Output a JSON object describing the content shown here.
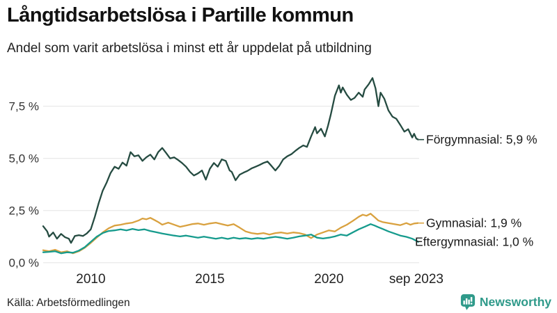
{
  "header": {
    "title": "Långtidsarbetslösa i Partille kommun",
    "subtitle": "Andel som varit arbetslösa i minst ett år uppdelat på utbildning"
  },
  "footer": {
    "source": "Källa: Arbetsförmedlingen",
    "brand": "Newsworthy",
    "brand_icon": "bar-chart-speech-bubble-icon",
    "brand_color": "#2f9a8a"
  },
  "chart_data": {
    "type": "line",
    "title": "Långtidsarbetslösa i Partille kommun",
    "subtitle": "Andel som varit arbetslösa i minst ett år uppdelat på utbildning",
    "grid": true,
    "legend_position": "right-end-labels",
    "x_axis": {
      "range": [
        2008.0,
        2023.75
      ],
      "ticks": [
        {
          "label": "2010",
          "x": 2010
        },
        {
          "label": "2015",
          "x": 2015
        },
        {
          "label": "2020",
          "x": 2020
        },
        {
          "label": "sep 2023",
          "x": 2023.67
        }
      ]
    },
    "y_axis": {
      "range": [
        0,
        8.9
      ],
      "unit": "%",
      "ticks": [
        {
          "label": "0,0 %",
          "value": 0.0
        },
        {
          "label": "2,5 %",
          "value": 2.5
        },
        {
          "label": "5,0 %",
          "value": 5.0
        },
        {
          "label": "7,5 %",
          "value": 7.5
        }
      ]
    },
    "gridline_color": "#e3e3e3",
    "series": [
      {
        "name": "Förgymnasial",
        "end_label": "Förgymnasial: 5,9 %",
        "end_value": "5,9 %",
        "color": "#254b41",
        "points": [
          [
            2008.0,
            1.75
          ],
          [
            2008.17,
            1.5
          ],
          [
            2008.25,
            1.25
          ],
          [
            2008.42,
            1.45
          ],
          [
            2008.58,
            1.15
          ],
          [
            2008.75,
            1.38
          ],
          [
            2008.92,
            1.22
          ],
          [
            2009.08,
            1.15
          ],
          [
            2009.17,
            0.95
          ],
          [
            2009.33,
            1.28
          ],
          [
            2009.5,
            1.32
          ],
          [
            2009.67,
            1.28
          ],
          [
            2009.83,
            1.4
          ],
          [
            2010.0,
            1.6
          ],
          [
            2010.17,
            2.2
          ],
          [
            2010.33,
            2.85
          ],
          [
            2010.5,
            3.45
          ],
          [
            2010.67,
            3.85
          ],
          [
            2010.83,
            4.3
          ],
          [
            2011.0,
            4.6
          ],
          [
            2011.17,
            4.5
          ],
          [
            2011.33,
            4.8
          ],
          [
            2011.5,
            4.65
          ],
          [
            2011.67,
            5.3
          ],
          [
            2011.83,
            5.1
          ],
          [
            2012.0,
            5.15
          ],
          [
            2012.17,
            4.88
          ],
          [
            2012.33,
            5.05
          ],
          [
            2012.5,
            5.18
          ],
          [
            2012.67,
            4.95
          ],
          [
            2012.83,
            5.3
          ],
          [
            2013.0,
            5.5
          ],
          [
            2013.17,
            5.25
          ],
          [
            2013.33,
            5.0
          ],
          [
            2013.5,
            5.05
          ],
          [
            2013.67,
            4.92
          ],
          [
            2013.83,
            4.78
          ],
          [
            2014.0,
            4.6
          ],
          [
            2014.17,
            4.35
          ],
          [
            2014.33,
            4.18
          ],
          [
            2014.5,
            4.28
          ],
          [
            2014.67,
            4.42
          ],
          [
            2014.83,
            3.98
          ],
          [
            2015.0,
            4.5
          ],
          [
            2015.17,
            4.78
          ],
          [
            2015.33,
            4.6
          ],
          [
            2015.5,
            4.95
          ],
          [
            2015.67,
            4.88
          ],
          [
            2015.83,
            4.42
          ],
          [
            2015.92,
            4.35
          ],
          [
            2016.08,
            3.95
          ],
          [
            2016.25,
            4.22
          ],
          [
            2016.42,
            4.32
          ],
          [
            2016.58,
            4.4
          ],
          [
            2016.75,
            4.52
          ],
          [
            2016.92,
            4.6
          ],
          [
            2017.08,
            4.68
          ],
          [
            2017.25,
            4.78
          ],
          [
            2017.42,
            4.85
          ],
          [
            2017.58,
            4.65
          ],
          [
            2017.75,
            4.42
          ],
          [
            2017.92,
            4.65
          ],
          [
            2018.08,
            4.95
          ],
          [
            2018.25,
            5.1
          ],
          [
            2018.42,
            5.2
          ],
          [
            2018.58,
            5.35
          ],
          [
            2018.75,
            5.5
          ],
          [
            2018.92,
            5.62
          ],
          [
            2019.08,
            5.55
          ],
          [
            2019.25,
            6.05
          ],
          [
            2019.42,
            6.5
          ],
          [
            2019.5,
            6.2
          ],
          [
            2019.67,
            6.42
          ],
          [
            2019.83,
            6.05
          ],
          [
            2019.96,
            6.55
          ],
          [
            2020.08,
            7.1
          ],
          [
            2020.25,
            8.0
          ],
          [
            2020.42,
            8.5
          ],
          [
            2020.5,
            8.15
          ],
          [
            2020.58,
            8.4
          ],
          [
            2020.75,
            8.05
          ],
          [
            2020.92,
            7.8
          ],
          [
            2021.08,
            7.9
          ],
          [
            2021.25,
            8.15
          ],
          [
            2021.42,
            7.95
          ],
          [
            2021.5,
            8.3
          ],
          [
            2021.67,
            8.55
          ],
          [
            2021.83,
            8.85
          ],
          [
            2021.96,
            8.35
          ],
          [
            2022.08,
            7.5
          ],
          [
            2022.17,
            8.15
          ],
          [
            2022.33,
            7.85
          ],
          [
            2022.5,
            7.3
          ],
          [
            2022.67,
            7.0
          ],
          [
            2022.83,
            6.9
          ],
          [
            2023.0,
            6.6
          ],
          [
            2023.17,
            6.28
          ],
          [
            2023.33,
            6.4
          ],
          [
            2023.5,
            6.0
          ],
          [
            2023.58,
            6.18
          ],
          [
            2023.67,
            5.95
          ],
          [
            2023.75,
            5.9
          ]
        ]
      },
      {
        "name": "Gymnasial",
        "end_label": "Gymnasial: 1,9 %",
        "end_value": "1,9 %",
        "color": "#d9a13f",
        "points": [
          [
            2008.0,
            0.6
          ],
          [
            2008.25,
            0.55
          ],
          [
            2008.5,
            0.62
          ],
          [
            2008.75,
            0.5
          ],
          [
            2009.0,
            0.55
          ],
          [
            2009.25,
            0.45
          ],
          [
            2009.5,
            0.55
          ],
          [
            2009.75,
            0.72
          ],
          [
            2010.0,
            0.95
          ],
          [
            2010.25,
            1.2
          ],
          [
            2010.5,
            1.45
          ],
          [
            2010.75,
            1.65
          ],
          [
            2011.0,
            1.78
          ],
          [
            2011.25,
            1.82
          ],
          [
            2011.5,
            1.88
          ],
          [
            2011.75,
            1.92
          ],
          [
            2012.0,
            2.02
          ],
          [
            2012.17,
            2.12
          ],
          [
            2012.33,
            2.08
          ],
          [
            2012.5,
            2.15
          ],
          [
            2012.67,
            2.05
          ],
          [
            2012.83,
            1.95
          ],
          [
            2013.0,
            1.82
          ],
          [
            2013.25,
            1.92
          ],
          [
            2013.5,
            1.82
          ],
          [
            2013.75,
            1.72
          ],
          [
            2014.0,
            1.78
          ],
          [
            2014.25,
            1.85
          ],
          [
            2014.5,
            1.88
          ],
          [
            2014.75,
            1.82
          ],
          [
            2015.0,
            1.88
          ],
          [
            2015.25,
            1.92
          ],
          [
            2015.5,
            1.85
          ],
          [
            2015.75,
            1.78
          ],
          [
            2016.0,
            1.85
          ],
          [
            2016.25,
            1.68
          ],
          [
            2016.5,
            1.5
          ],
          [
            2016.75,
            1.42
          ],
          [
            2017.0,
            1.38
          ],
          [
            2017.25,
            1.42
          ],
          [
            2017.5,
            1.35
          ],
          [
            2017.75,
            1.42
          ],
          [
            2018.0,
            1.45
          ],
          [
            2018.25,
            1.4
          ],
          [
            2018.5,
            1.45
          ],
          [
            2018.75,
            1.42
          ],
          [
            2019.0,
            1.35
          ],
          [
            2019.25,
            1.18
          ],
          [
            2019.5,
            1.35
          ],
          [
            2019.75,
            1.45
          ],
          [
            2020.0,
            1.55
          ],
          [
            2020.25,
            1.5
          ],
          [
            2020.5,
            1.68
          ],
          [
            2020.75,
            1.82
          ],
          [
            2021.0,
            2.0
          ],
          [
            2021.25,
            2.2
          ],
          [
            2021.42,
            2.3
          ],
          [
            2021.58,
            2.25
          ],
          [
            2021.75,
            2.35
          ],
          [
            2021.92,
            2.18
          ],
          [
            2022.08,
            2.02
          ],
          [
            2022.25,
            1.95
          ],
          [
            2022.5,
            1.9
          ],
          [
            2022.75,
            1.85
          ],
          [
            2023.0,
            1.8
          ],
          [
            2023.25,
            1.9
          ],
          [
            2023.42,
            1.82
          ],
          [
            2023.58,
            1.88
          ],
          [
            2023.75,
            1.9
          ]
        ]
      },
      {
        "name": "Eftergymnasial",
        "end_label": "Eftergymnasial: 1,0 %",
        "end_value": "1,0 %",
        "color": "#169b8d",
        "points": [
          [
            2008.0,
            0.5
          ],
          [
            2008.25,
            0.52
          ],
          [
            2008.5,
            0.55
          ],
          [
            2008.75,
            0.45
          ],
          [
            2009.0,
            0.5
          ],
          [
            2009.25,
            0.48
          ],
          [
            2009.5,
            0.58
          ],
          [
            2009.75,
            0.75
          ],
          [
            2010.0,
            1.0
          ],
          [
            2010.25,
            1.25
          ],
          [
            2010.5,
            1.42
          ],
          [
            2010.75,
            1.52
          ],
          [
            2011.0,
            1.55
          ],
          [
            2011.25,
            1.6
          ],
          [
            2011.5,
            1.55
          ],
          [
            2011.75,
            1.62
          ],
          [
            2012.0,
            1.56
          ],
          [
            2012.25,
            1.6
          ],
          [
            2012.5,
            1.52
          ],
          [
            2012.75,
            1.46
          ],
          [
            2013.0,
            1.4
          ],
          [
            2013.25,
            1.35
          ],
          [
            2013.5,
            1.3
          ],
          [
            2013.75,
            1.26
          ],
          [
            2014.0,
            1.3
          ],
          [
            2014.25,
            1.25
          ],
          [
            2014.5,
            1.2
          ],
          [
            2014.75,
            1.25
          ],
          [
            2015.0,
            1.2
          ],
          [
            2015.25,
            1.15
          ],
          [
            2015.5,
            1.2
          ],
          [
            2015.75,
            1.14
          ],
          [
            2016.0,
            1.2
          ],
          [
            2016.25,
            1.15
          ],
          [
            2016.5,
            1.18
          ],
          [
            2016.75,
            1.14
          ],
          [
            2017.0,
            1.18
          ],
          [
            2017.25,
            1.15
          ],
          [
            2017.5,
            1.2
          ],
          [
            2017.75,
            1.24
          ],
          [
            2018.0,
            1.2
          ],
          [
            2018.25,
            1.15
          ],
          [
            2018.5,
            1.2
          ],
          [
            2018.75,
            1.26
          ],
          [
            2019.0,
            1.3
          ],
          [
            2019.25,
            1.35
          ],
          [
            2019.5,
            1.2
          ],
          [
            2019.75,
            1.16
          ],
          [
            2020.0,
            1.2
          ],
          [
            2020.25,
            1.26
          ],
          [
            2020.5,
            1.35
          ],
          [
            2020.75,
            1.3
          ],
          [
            2021.0,
            1.45
          ],
          [
            2021.25,
            1.6
          ],
          [
            2021.5,
            1.72
          ],
          [
            2021.75,
            1.85
          ],
          [
            2021.92,
            1.78
          ],
          [
            2022.08,
            1.7
          ],
          [
            2022.25,
            1.62
          ],
          [
            2022.5,
            1.5
          ],
          [
            2022.75,
            1.4
          ],
          [
            2023.0,
            1.3
          ],
          [
            2023.25,
            1.24
          ],
          [
            2023.5,
            1.15
          ],
          [
            2023.67,
            1.05
          ],
          [
            2023.75,
            1.0
          ]
        ]
      }
    ]
  }
}
